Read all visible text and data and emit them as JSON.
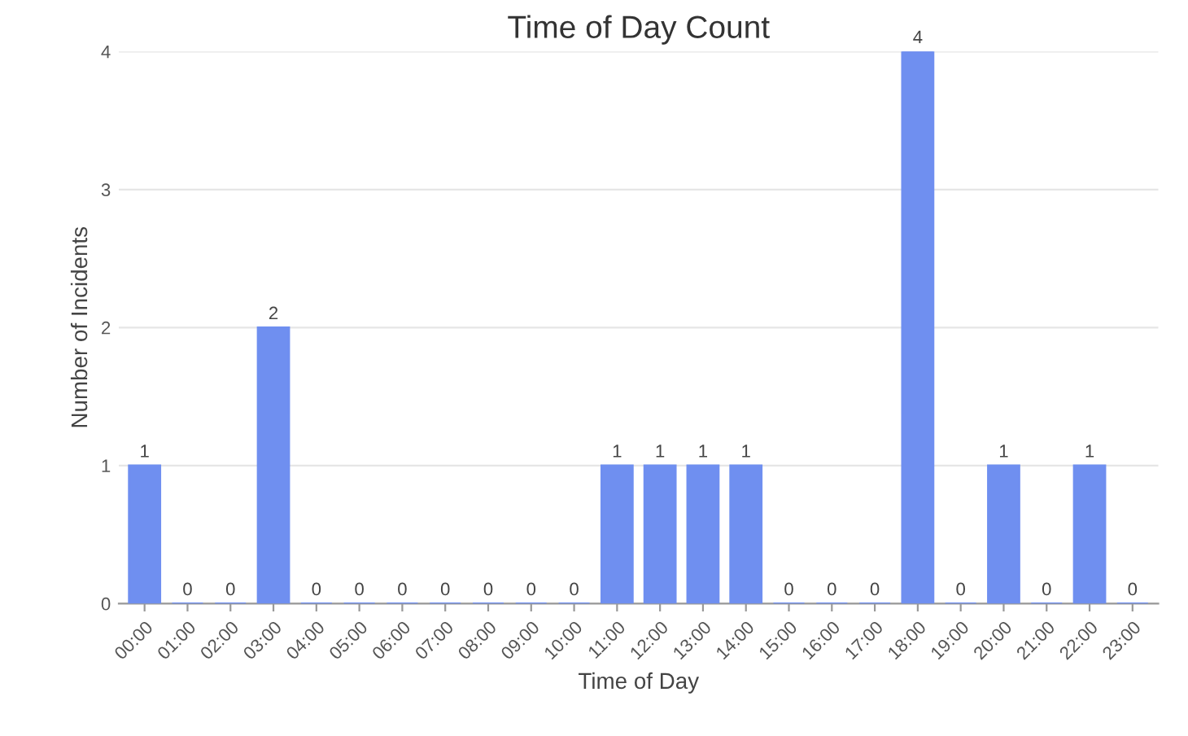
{
  "chart_data": {
    "type": "bar",
    "title": "Time of Day Count",
    "xlabel": "Time of Day",
    "ylabel": "Number of Incidents",
    "categories": [
      "00:00",
      "01:00",
      "02:00",
      "03:00",
      "04:00",
      "05:00",
      "06:00",
      "07:00",
      "08:00",
      "09:00",
      "10:00",
      "11:00",
      "12:00",
      "13:00",
      "14:00",
      "15:00",
      "16:00",
      "17:00",
      "18:00",
      "19:00",
      "20:00",
      "21:00",
      "22:00",
      "23:00"
    ],
    "values": [
      1,
      0,
      0,
      2,
      0,
      0,
      0,
      0,
      0,
      0,
      0,
      1,
      1,
      1,
      1,
      0,
      0,
      0,
      4,
      0,
      1,
      0,
      1,
      0
    ],
    "color": "#6f8ff0",
    "ylim": [
      0,
      4
    ],
    "yticks": [
      0,
      1,
      2,
      3,
      4
    ],
    "grid": "y",
    "data_labels": true
  }
}
